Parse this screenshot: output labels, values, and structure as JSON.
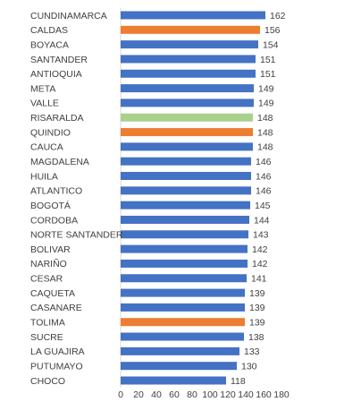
{
  "chart_data": {
    "type": "bar",
    "orientation": "horizontal",
    "categories": [
      "CUNDINAMARCA",
      "CALDAS",
      "BOYACA",
      "SANTANDER",
      "ANTIOQUIA",
      "META",
      "VALLE",
      "RISARALDA",
      "QUINDIO",
      "CAUCA",
      "MAGDALENA",
      "HUILA",
      "ATLANTICO",
      "BOGOTÁ",
      "CORDOBA",
      "NORTE SANTANDER",
      "BOLIVAR",
      "NARIÑO",
      "CESAR",
      "CAQUETA",
      "CASANARE",
      "TOLIMA",
      "SUCRE",
      "LA GUAJIRA",
      "PUTUMAYO",
      "CHOCO"
    ],
    "values": [
      162,
      156,
      154,
      151,
      151,
      149,
      149,
      148,
      148,
      148,
      146,
      146,
      146,
      145,
      144,
      143,
      142,
      142,
      141,
      139,
      139,
      139,
      138,
      133,
      130,
      118
    ],
    "data_labels": [
      "162",
      "156",
      "154",
      "151",
      "151",
      "149",
      "149",
      "148",
      "148",
      "148",
      "146",
      "146",
      "146",
      "145",
      "144",
      "143",
      "142",
      "142",
      "141",
      "139",
      "139",
      "139",
      "138",
      "133",
      "130",
      "118"
    ],
    "bar_colors": [
      "#4472C4",
      "#ED7D31",
      "#4472C4",
      "#4472C4",
      "#4472C4",
      "#4472C4",
      "#4472C4",
      "#A9D18E",
      "#ED7D31",
      "#4472C4",
      "#4472C4",
      "#4472C4",
      "#4472C4",
      "#4472C4",
      "#4472C4",
      "#4472C4",
      "#4472C4",
      "#4472C4",
      "#4472C4",
      "#4472C4",
      "#4472C4",
      "#ED7D31",
      "#4472C4",
      "#4472C4",
      "#4472C4",
      "#4472C4"
    ],
    "x_ticks": [
      "0",
      "20",
      "40",
      "60",
      "80",
      "100",
      "120",
      "140",
      "160",
      "180"
    ],
    "xlim": [
      0,
      180
    ],
    "title": "",
    "xlabel": "",
    "ylabel": "",
    "grid": false,
    "legend": "none"
  }
}
